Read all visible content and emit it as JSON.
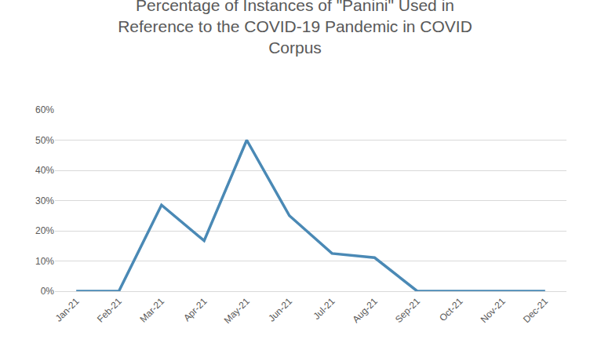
{
  "chart_data": {
    "type": "line",
    "title": "Percentage of Instances of \"Panini\" Used in Reference to the COVID-19 Pandemic in COVID Corpus",
    "categories": [
      "Jan-21",
      "Feb-21",
      "Mar-21",
      "Apr-21",
      "May-21",
      "Jun-21",
      "Jul-21",
      "Aug-21",
      "Sep-21",
      "Oct-21",
      "Nov-21",
      "Dec-21"
    ],
    "values": [
      0,
      0,
      28.5,
      16.7,
      50,
      25,
      12.5,
      11.1,
      0,
      0,
      0,
      0
    ],
    "color": "#4a89b5",
    "ylim": [
      0,
      60
    ],
    "yticks": [
      {
        "value": 0,
        "label": "0%"
      },
      {
        "value": 10,
        "label": "10%"
      },
      {
        "value": 20,
        "label": "20%"
      },
      {
        "value": 30,
        "label": "30%"
      },
      {
        "value": 40,
        "label": "40%"
      },
      {
        "value": 50,
        "label": "50%"
      },
      {
        "value": 60,
        "label": "60%"
      }
    ],
    "grid": true
  }
}
